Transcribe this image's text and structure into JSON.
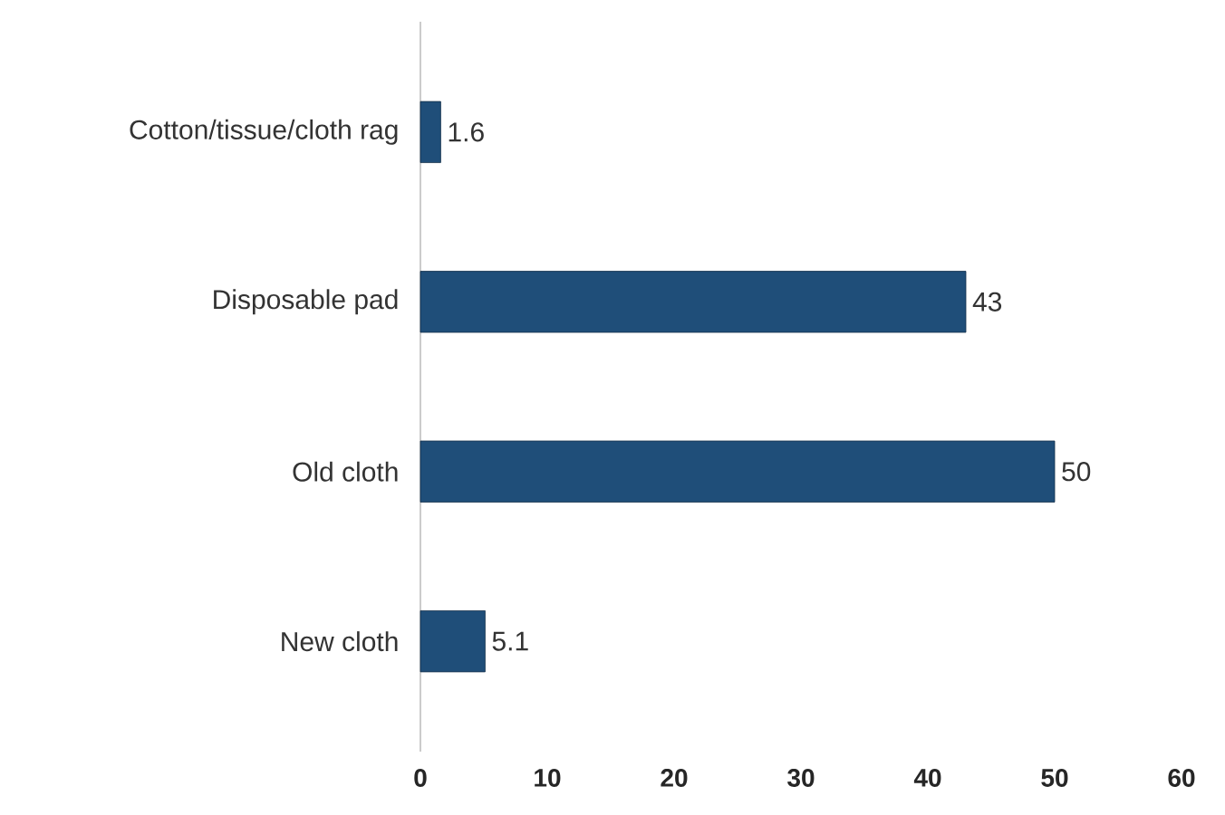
{
  "chart_data": {
    "type": "bar",
    "orientation": "horizontal",
    "categories": [
      "Cotton/tissue/cloth rag",
      "Disposable pad",
      "Old cloth",
      "New cloth"
    ],
    "values": [
      1.6,
      43,
      50,
      5.1
    ],
    "color": "#1f4e79",
    "xlim": [
      0,
      60
    ],
    "xticks": [
      0,
      10,
      20,
      30,
      40,
      50,
      60
    ],
    "data_labels": true
  }
}
